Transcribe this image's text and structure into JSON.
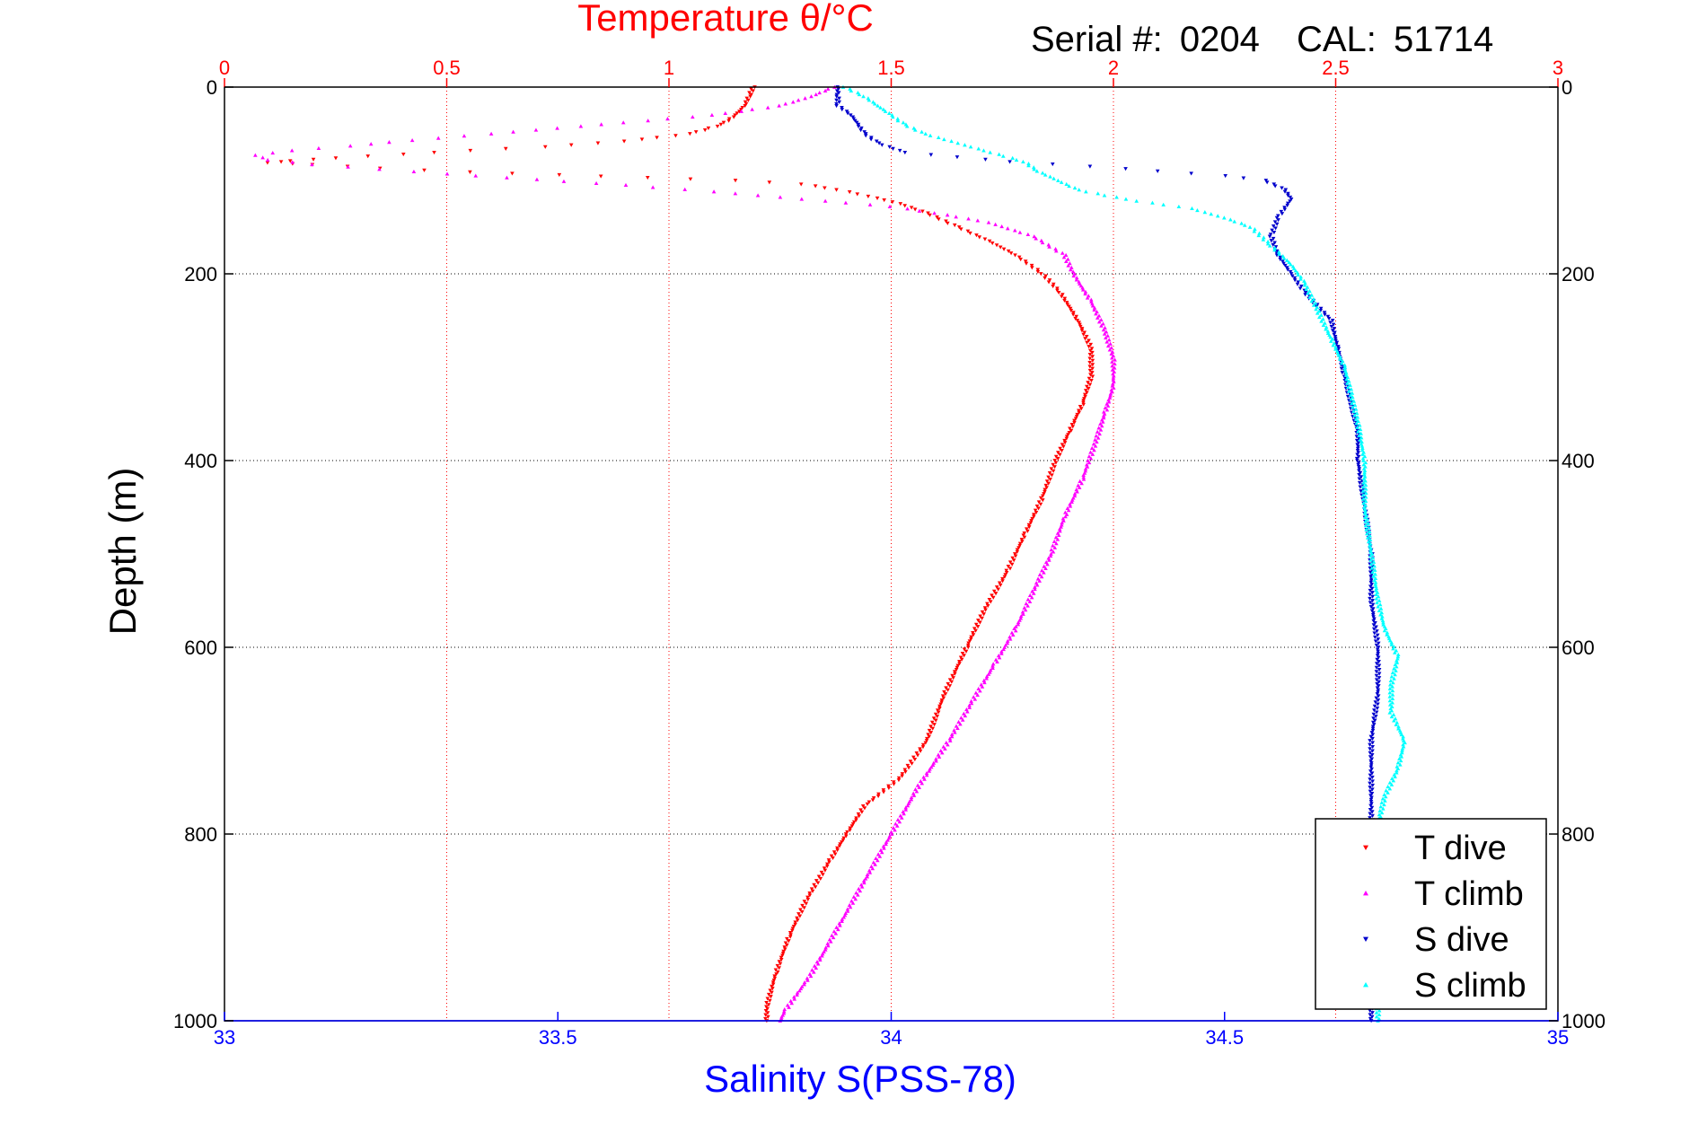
{
  "header": {
    "serial_label": "Serial #:",
    "serial_value": "0204",
    "cal_label": "CAL:",
    "cal_value": "51714"
  },
  "colors": {
    "temperature_axis": "#ff0000",
    "salinity_axis": "#0000ff",
    "t_dive": "#ff0000",
    "t_climb": "#ff00ff",
    "s_dive": "#0000cc",
    "s_climb": "#00ffff"
  },
  "chart_data": {
    "type": "scatter",
    "title": "Temperature θ/°C",
    "xlabel": "Salinity S(PSS-78)",
    "ylabel": "Depth (m)",
    "top_axis": {
      "label": "Temperature θ/°C",
      "range": [
        0,
        3
      ],
      "ticks": [
        "0",
        "0.5",
        "1",
        "1.5",
        "2",
        "2.5",
        "3"
      ]
    },
    "bottom_axis": {
      "label": "Salinity S(PSS-78)",
      "range": [
        33,
        35
      ],
      "ticks": [
        "33",
        "33.5",
        "34",
        "34.5",
        "35"
      ]
    },
    "y_axis": {
      "label": "Depth (m)",
      "range": [
        0,
        1000
      ],
      "reversed": true,
      "ticks": [
        "0",
        "200",
        "400",
        "600",
        "800",
        "1000"
      ]
    },
    "grid": true,
    "legend_position": "bottom-right",
    "series": [
      {
        "name": "T dive",
        "axis": "temperature",
        "marker": "triangle-down",
        "points": [
          [
            1.19,
            0
          ],
          [
            1.18,
            10
          ],
          [
            1.17,
            20
          ],
          [
            1.15,
            30
          ],
          [
            1.12,
            40
          ],
          [
            1.05,
            50
          ],
          [
            0.9,
            58
          ],
          [
            0.72,
            64
          ],
          [
            0.55,
            68
          ],
          [
            0.4,
            72
          ],
          [
            0.25,
            76
          ],
          [
            0.15,
            79
          ],
          [
            0.1,
            81
          ],
          [
            0.2,
            83
          ],
          [
            0.35,
            87
          ],
          [
            0.55,
            91
          ],
          [
            0.75,
            94
          ],
          [
            0.95,
            97
          ],
          [
            1.15,
            100
          ],
          [
            1.3,
            104
          ],
          [
            1.38,
            110
          ],
          [
            1.45,
            117
          ],
          [
            1.52,
            125
          ],
          [
            1.58,
            135
          ],
          [
            1.65,
            150
          ],
          [
            1.72,
            165
          ],
          [
            1.78,
            180
          ],
          [
            1.84,
            200
          ],
          [
            1.88,
            220
          ],
          [
            1.92,
            250
          ],
          [
            1.95,
            280
          ],
          [
            1.95,
            310
          ],
          [
            1.93,
            340
          ],
          [
            1.9,
            370
          ],
          [
            1.87,
            400
          ],
          [
            1.84,
            440
          ],
          [
            1.8,
            480
          ],
          [
            1.76,
            520
          ],
          [
            1.71,
            560
          ],
          [
            1.67,
            600
          ],
          [
            1.62,
            650
          ],
          [
            1.58,
            700
          ],
          [
            1.52,
            740
          ],
          [
            1.44,
            770
          ],
          [
            1.4,
            800
          ],
          [
            1.36,
            830
          ],
          [
            1.31,
            870
          ],
          [
            1.27,
            910
          ],
          [
            1.24,
            950
          ],
          [
            1.22,
            985
          ],
          [
            1.22,
            1000
          ]
        ]
      },
      {
        "name": "T climb",
        "axis": "temperature",
        "marker": "triangle-up",
        "points": [
          [
            1.37,
            0
          ],
          [
            1.32,
            10
          ],
          [
            1.25,
            20
          ],
          [
            1.1,
            30
          ],
          [
            0.85,
            40
          ],
          [
            0.6,
            50
          ],
          [
            0.42,
            57
          ],
          [
            0.28,
            63
          ],
          [
            0.15,
            68
          ],
          [
            0.07,
            73
          ],
          [
            0.1,
            78
          ],
          [
            0.2,
            83
          ],
          [
            0.35,
            88
          ],
          [
            0.5,
            93
          ],
          [
            0.7,
            99
          ],
          [
            0.9,
            105
          ],
          [
            1.1,
            112
          ],
          [
            1.3,
            120
          ],
          [
            1.5,
            128
          ],
          [
            1.6,
            135
          ],
          [
            1.72,
            145
          ],
          [
            1.82,
            160
          ],
          [
            1.89,
            180
          ],
          [
            1.91,
            200
          ],
          [
            1.95,
            230
          ],
          [
            1.98,
            260
          ],
          [
            2.0,
            290
          ],
          [
            2.0,
            320
          ],
          [
            1.98,
            350
          ],
          [
            1.96,
            380
          ],
          [
            1.93,
            420
          ],
          [
            1.89,
            460
          ],
          [
            1.86,
            500
          ],
          [
            1.82,
            540
          ],
          [
            1.78,
            580
          ],
          [
            1.73,
            620
          ],
          [
            1.68,
            660
          ],
          [
            1.63,
            700
          ],
          [
            1.56,
            750
          ],
          [
            1.5,
            800
          ],
          [
            1.44,
            850
          ],
          [
            1.38,
            900
          ],
          [
            1.32,
            950
          ],
          [
            1.26,
            990
          ],
          [
            1.25,
            1000
          ]
        ]
      },
      {
        "name": "S dive",
        "axis": "salinity",
        "marker": "triangle-down",
        "points": [
          [
            33.92,
            0
          ],
          [
            33.92,
            10
          ],
          [
            33.92,
            20
          ],
          [
            33.94,
            30
          ],
          [
            33.95,
            40
          ],
          [
            33.96,
            50
          ],
          [
            33.98,
            60
          ],
          [
            34.02,
            70
          ],
          [
            34.1,
            75
          ],
          [
            34.18,
            80
          ],
          [
            34.3,
            85
          ],
          [
            34.4,
            90
          ],
          [
            34.5,
            95
          ],
          [
            34.56,
            100
          ],
          [
            34.59,
            110
          ],
          [
            34.6,
            120
          ],
          [
            34.58,
            140
          ],
          [
            34.57,
            160
          ],
          [
            34.58,
            180
          ],
          [
            34.6,
            200
          ],
          [
            34.62,
            220
          ],
          [
            34.66,
            250
          ],
          [
            34.67,
            280
          ],
          [
            34.68,
            310
          ],
          [
            34.69,
            340
          ],
          [
            34.7,
            370
          ],
          [
            34.7,
            400
          ],
          [
            34.71,
            450
          ],
          [
            34.72,
            500
          ],
          [
            34.72,
            550
          ],
          [
            34.73,
            600
          ],
          [
            34.73,
            650
          ],
          [
            34.72,
            700
          ],
          [
            34.72,
            750
          ],
          [
            34.72,
            800
          ],
          [
            34.72,
            850
          ],
          [
            34.72,
            900
          ],
          [
            34.72,
            950
          ],
          [
            34.72,
            1000
          ]
        ]
      },
      {
        "name": "S climb",
        "axis": "salinity",
        "marker": "triangle-up",
        "points": [
          [
            33.93,
            0
          ],
          [
            33.96,
            10
          ],
          [
            33.98,
            20
          ],
          [
            34.0,
            30
          ],
          [
            34.02,
            40
          ],
          [
            34.05,
            50
          ],
          [
            34.1,
            60
          ],
          [
            34.15,
            70
          ],
          [
            34.2,
            80
          ],
          [
            34.22,
            90
          ],
          [
            34.25,
            100
          ],
          [
            34.28,
            110
          ],
          [
            34.35,
            120
          ],
          [
            34.45,
            130
          ],
          [
            34.5,
            140
          ],
          [
            34.54,
            150
          ],
          [
            34.57,
            170
          ],
          [
            34.6,
            190
          ],
          [
            34.62,
            210
          ],
          [
            34.64,
            240
          ],
          [
            34.66,
            270
          ],
          [
            34.68,
            300
          ],
          [
            34.69,
            330
          ],
          [
            34.7,
            360
          ],
          [
            34.71,
            400
          ],
          [
            34.71,
            450
          ],
          [
            34.72,
            500
          ],
          [
            34.73,
            550
          ],
          [
            34.74,
            580
          ],
          [
            34.76,
            610
          ],
          [
            34.75,
            640
          ],
          [
            34.75,
            670
          ],
          [
            34.77,
            700
          ],
          [
            34.76,
            730
          ],
          [
            34.74,
            760
          ],
          [
            34.73,
            790
          ],
          [
            34.73,
            830
          ],
          [
            34.73,
            870
          ],
          [
            34.73,
            910
          ],
          [
            34.73,
            950
          ],
          [
            34.73,
            1000
          ]
        ]
      }
    ]
  }
}
